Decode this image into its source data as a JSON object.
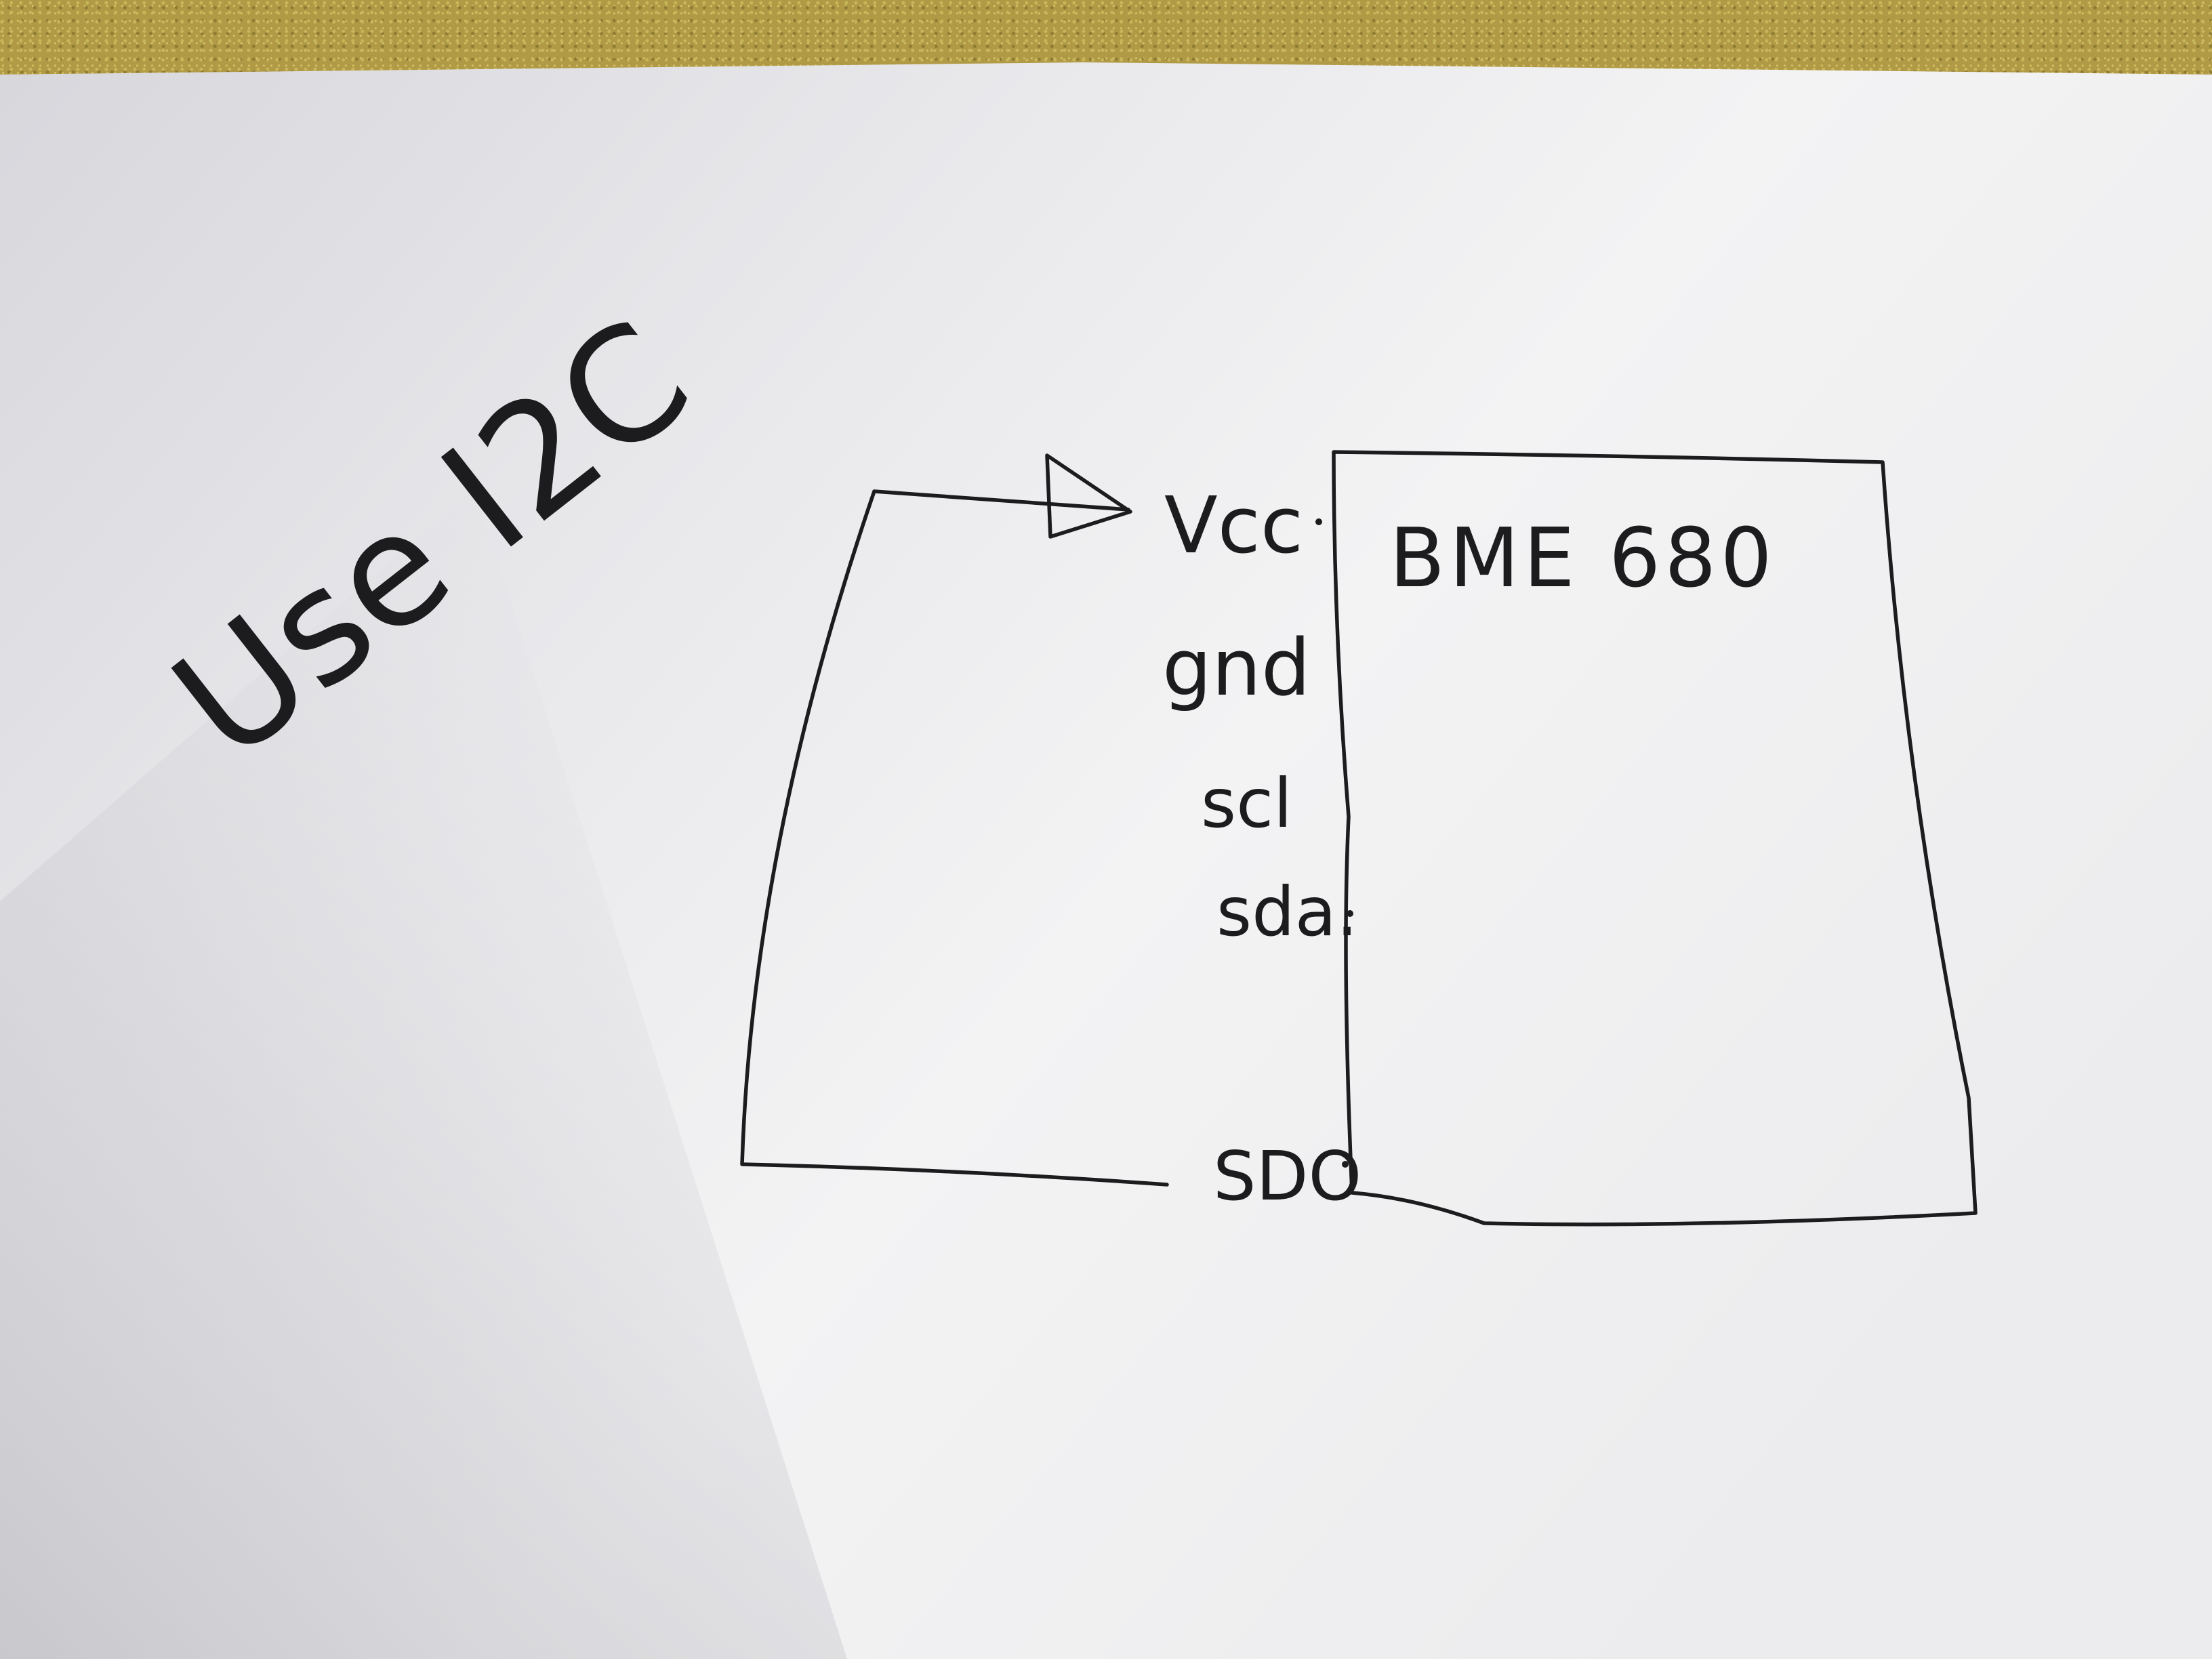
{
  "note": {
    "text": "Use I2C"
  },
  "module": {
    "label": "BME 680"
  },
  "pins": [
    {
      "label": "Vcc"
    },
    {
      "label": "gnd"
    },
    {
      "label": "scl"
    },
    {
      "label": "sda."
    },
    {
      "label": "SDO"
    }
  ],
  "colors": {
    "ink": "#1c1c1e",
    "paper": "#eeeeef",
    "desk": "#b09a45"
  }
}
